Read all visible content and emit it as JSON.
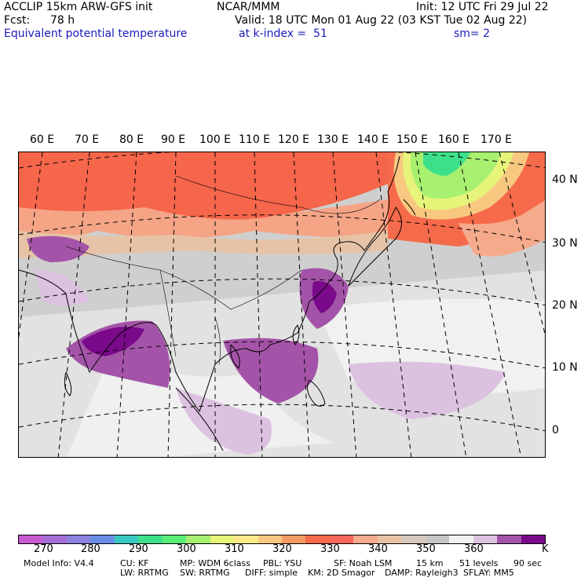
{
  "header": {
    "model": "ACCLIP 15km ARW-GFS init",
    "center": "NCAR/MMM",
    "init": "Init: 12 UTC Fri 29 Jul 22",
    "fcst_label": "Fcst:",
    "fcst_value": "78 h",
    "valid": "Valid: 18 UTC Mon 01 Aug 22 (03 KST Tue 02 Aug 22)",
    "field": "Equivalent potential temperature",
    "level": "at k-index =  51",
    "smoothing": "sm= 2"
  },
  "map": {
    "longitude_labels": [
      "60 E",
      "70 E",
      "80 E",
      "90 E",
      "100 E",
      "110 E",
      "120 E",
      "130 E",
      "140 E",
      "150 E",
      "160 E",
      "170 E"
    ],
    "latitude_labels": [
      "40 N",
      "30 N",
      "20 N",
      "10 N",
      "0"
    ]
  },
  "colorbar": {
    "unit": "K",
    "tick_labels": [
      "270",
      "280",
      "290",
      "300",
      "310",
      "320",
      "330",
      "340",
      "350",
      "360"
    ],
    "colors": [
      "#c85ad2",
      "#a76ed6",
      "#8c82e0",
      "#6a8ee8",
      "#37c9c2",
      "#3de08a",
      "#58ee78",
      "#a8f070",
      "#e6f57a",
      "#fbe98a",
      "#f8c880",
      "#f59a60",
      "#f56a4a",
      "#f5675a",
      "#f5aa8c",
      "#e8c4a6",
      "#d6c8bd",
      "#c6c6c6",
      "#f2f2f2",
      "#dcc2e0",
      "#a454a8",
      "#7a0a8a"
    ]
  },
  "footer": {
    "line1": [
      "Model Info: V4.4",
      "CU: KF",
      "MP: WDM 6class",
      "PBL: YSU",
      "SF: Noah LSM",
      "15 km",
      "51 levels",
      "90 sec"
    ],
    "line2": [
      "LW: RRTMG",
      "SW: RRTMG",
      "DIFF: simple",
      "KM: 2D Smagor",
      "DAMP: Rayleigh3",
      "SFLAY: MM5"
    ]
  }
}
